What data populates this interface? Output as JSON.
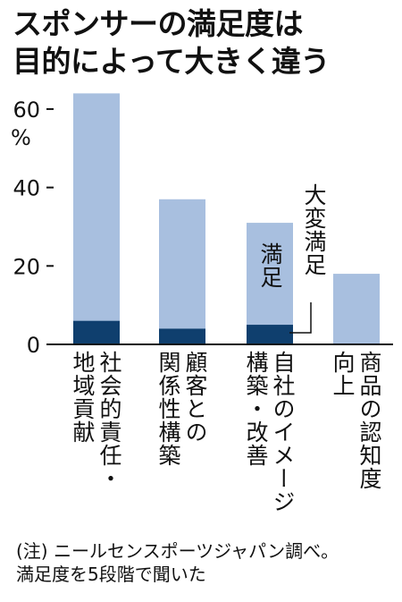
{
  "title_lines": [
    "スポンサーの満足度は",
    "目的によって大きく違う"
  ],
  "colors": {
    "light": "#a8bfdf",
    "dark": "#0f3f6e",
    "text": "#111111"
  },
  "chart_data": {
    "type": "bar",
    "categories": [
      "社会的責任・地域貢献",
      "顧客との関係性構築",
      "自社のイメージ構築・改善",
      "商品の認知度向上"
    ],
    "category_label_lines": [
      [
        "社会的責任・",
        "地域貢献"
      ],
      [
        "顧客との",
        "関係性構築"
      ],
      [
        "自社のイメージ",
        "構築・改善"
      ],
      [
        "商品の認知度",
        "向上"
      ]
    ],
    "series": [
      {
        "name": "満足",
        "values": [
          64,
          37,
          31,
          18
        ]
      },
      {
        "name": "大変満足",
        "values": [
          6,
          4,
          5,
          0
        ]
      }
    ],
    "ylim": [
      0,
      65
    ],
    "yticks": [
      0,
      20,
      40,
      60
    ],
    "ytick_labels": [
      "0",
      "20",
      "40",
      "60"
    ],
    "y_unit": "%",
    "annotations": {
      "satisfied": "満足",
      "very_satisfied": "大変満足"
    }
  },
  "note_lines": [
    "(注) ニールセンスポーツジャパン調べ。",
    "満足度を5段階で聞いた"
  ]
}
